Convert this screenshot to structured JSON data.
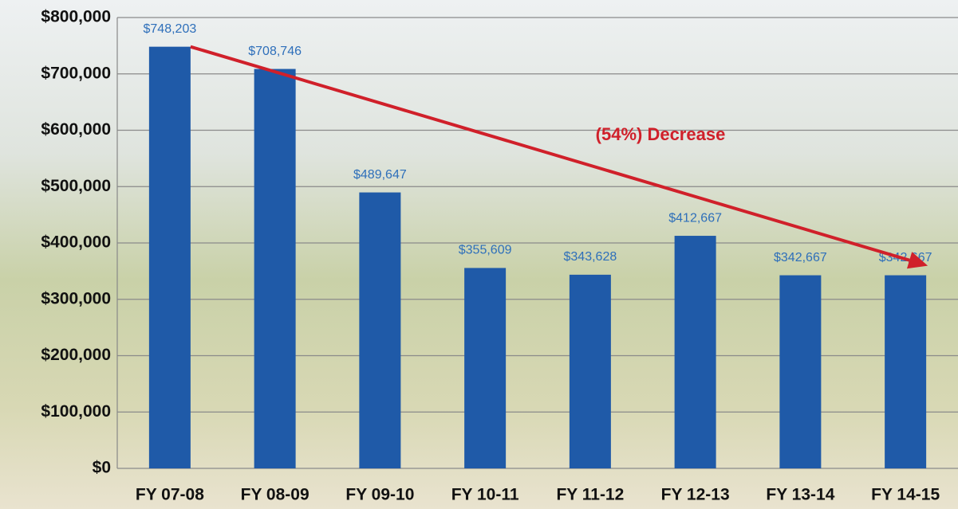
{
  "chart_data": {
    "type": "bar",
    "annotation": "(54%) Decrease",
    "categories": [
      "FY 07-08",
      "FY 08-09",
      "FY 09-10",
      "FY 10-11",
      "FY 11-12",
      "FY 12-13",
      "FY 13-14",
      "FY 14-15"
    ],
    "values": [
      748203,
      708746,
      489647,
      355609,
      343628,
      412667,
      342667,
      342667
    ],
    "value_labels": [
      "$748,203",
      "$708,746",
      "$489,647",
      "$355,609",
      "$343,628",
      "$412,667",
      "$342,667",
      "$342,667"
    ],
    "color": "#1f5aa8",
    "ylim": [
      0,
      800000
    ],
    "yticks": [
      {
        "value": 0,
        "label": "$0"
      },
      {
        "value": 100000,
        "label": "$100,000"
      },
      {
        "value": 200000,
        "label": "$200,000"
      },
      {
        "value": 300000,
        "label": "$300,000"
      },
      {
        "value": 400000,
        "label": "$400,000"
      },
      {
        "value": 500000,
        "label": "$500,000"
      },
      {
        "value": 600000,
        "label": "$600,000"
      },
      {
        "value": 700000,
        "label": "$700,000"
      },
      {
        "value": 800000,
        "label": "$800,000"
      }
    ],
    "grid": true
  }
}
